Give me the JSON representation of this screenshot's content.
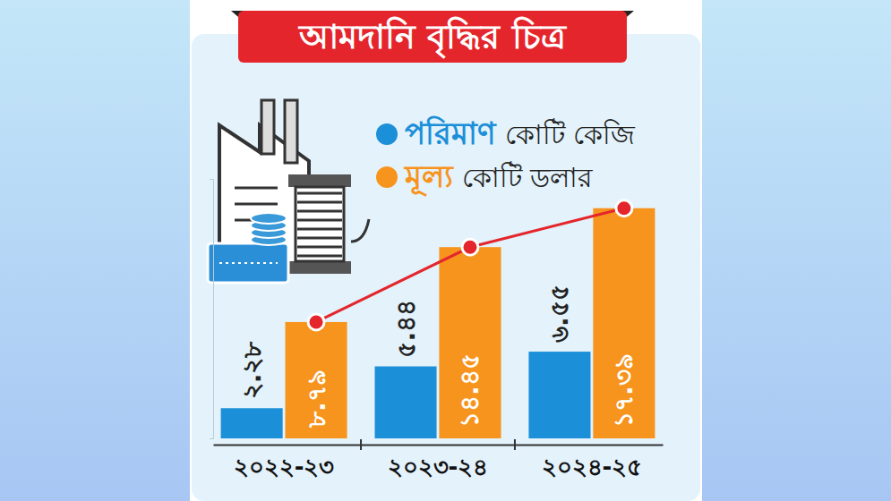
{
  "chart_data": {
    "type": "bar",
    "title": "আমদানি বৃদ্ধির চিত্র",
    "categories": [
      "২০২২-২৩",
      "২০২৩-২৪",
      "২০২৪-২৫"
    ],
    "series": [
      {
        "name": "পরিমাণ কোটি কেজি",
        "color": "#1b8fd8",
        "values": [
          2.28,
          5.44,
          6.55
        ],
        "value_labels": [
          "২.২৮",
          "৫.৪৪",
          "৬.৫৫"
        ]
      },
      {
        "name": "মূল্য কোটি ডলার",
        "color": "#f7941d",
        "values": [
          8.79,
          14.45,
          17.39
        ],
        "value_labels": [
          "৮.৭৯",
          "১৪.৪৫",
          "১৭.৩৯"
        ],
        "marker": "circle",
        "line_style": "solid"
      }
    ],
    "ylim": [
      0,
      19.6
    ],
    "yticks": [
      0
    ],
    "tick_labels": "x",
    "data_labels": true,
    "legend": "top-right"
  }
}
